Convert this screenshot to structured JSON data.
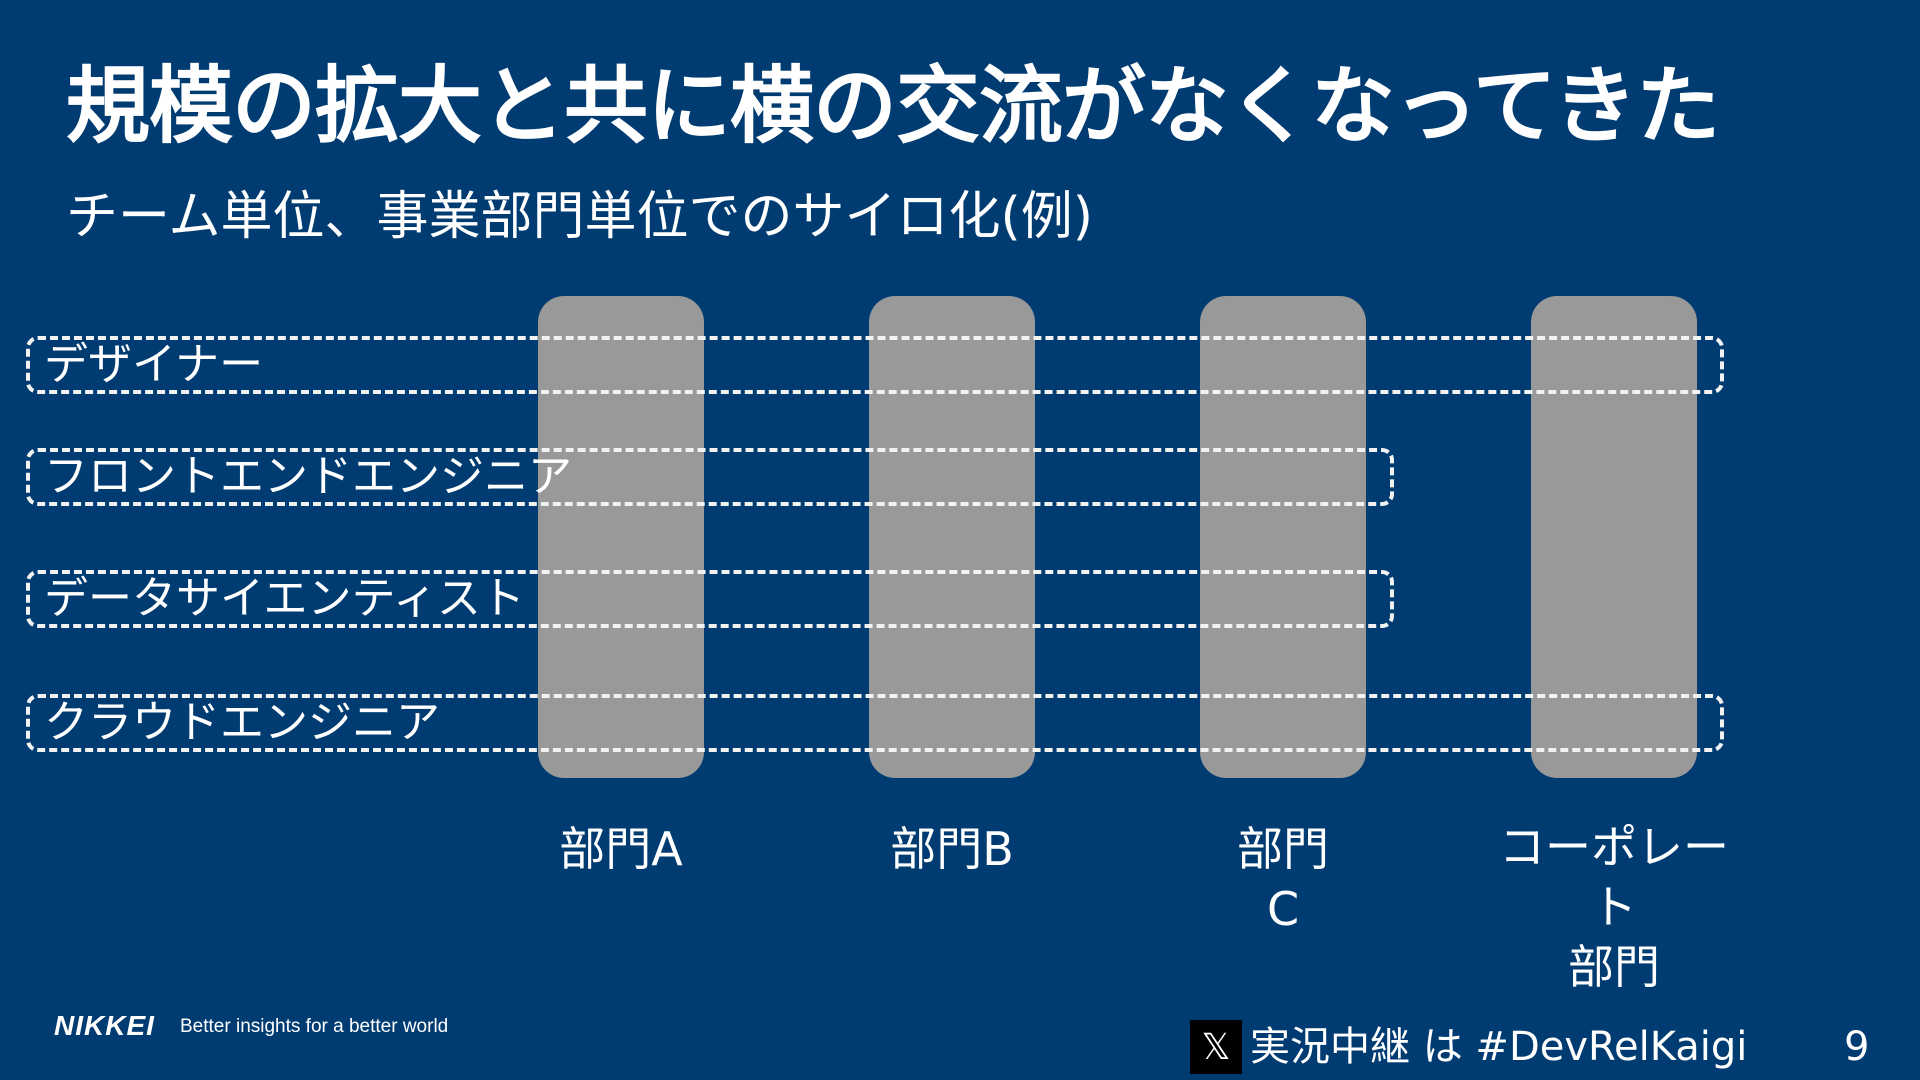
{
  "slide": {
    "title": "規模の拡大と共に横の交流がなくなってきた",
    "subtitle": "チーム単位、事業部門単位でのサイロ化(例)"
  },
  "departments": [
    {
      "label": "部門A"
    },
    {
      "label": "部門B"
    },
    {
      "label": "部門\nC"
    },
    {
      "label": "コーポレート\n部門"
    }
  ],
  "roles": [
    {
      "label": "デザイナー"
    },
    {
      "label": "フロントエンドエンジニア"
    },
    {
      "label": "データサイエンティスト"
    },
    {
      "label": "クラウドエンジニア"
    }
  ],
  "footer": {
    "logo": "NIKKEI",
    "tagline": "Better insights for a better world",
    "x_icon": "x-logo-icon",
    "x_glyph": "𝕏",
    "hashtag": "実況中継 は #DevRelKaigi",
    "page_number": "9"
  },
  "colors": {
    "background": "#003c71",
    "column": "#999999",
    "dashed_border": "#f2f2f2",
    "text": "#ffffff"
  }
}
